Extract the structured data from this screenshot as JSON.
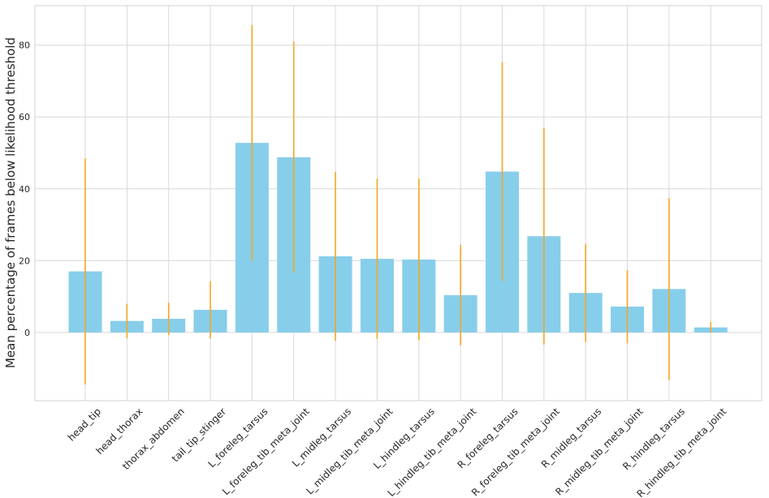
{
  "chart_data": {
    "type": "bar",
    "title": "",
    "xlabel": "",
    "ylabel": "Mean percentage of frames below likelihood threshold",
    "ylim": [
      -19,
      91
    ],
    "yticks": [
      0,
      20,
      40,
      60,
      80
    ],
    "grid": true,
    "categories": [
      "head_tip",
      "head_thorax",
      "thorax_abdomen",
      "tail_tip_stinger",
      "L_foreleg_tarsus",
      "L_foreleg_tib_meta_joint",
      "L_midleg_tarsus",
      "L_midleg_tib_meta_joint",
      "L_hindleg_tarsus",
      "L_hindleg_tib_meta_joint",
      "R_foreleg_tarsus",
      "R_foreleg_tib_meta_joint",
      "R_midleg_tarsus",
      "R_midleg_tib_meta_joint",
      "R_hindleg_tarsus",
      "R_hindleg_tib_meta_joint"
    ],
    "values": [
      17.0,
      3.2,
      3.8,
      6.3,
      52.8,
      48.8,
      21.2,
      20.5,
      20.3,
      10.4,
      44.8,
      26.8,
      11.0,
      7.2,
      12.1,
      1.4
    ],
    "error": [
      31.5,
      4.8,
      4.5,
      8.0,
      32.8,
      32.2,
      23.5,
      22.3,
      22.5,
      14.0,
      30.5,
      30.2,
      13.7,
      10.2,
      25.3,
      1.5
    ],
    "bar_color": "#87ceeb",
    "error_color": "#f5a623"
  }
}
